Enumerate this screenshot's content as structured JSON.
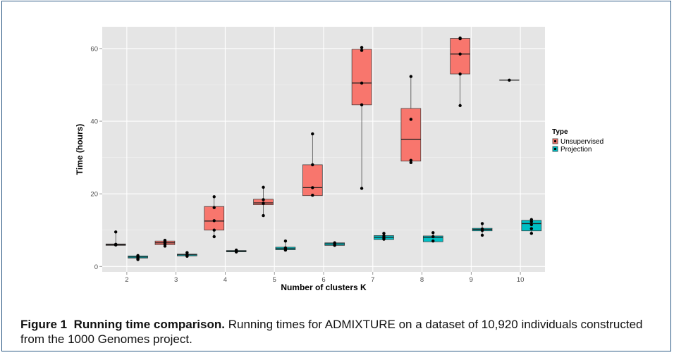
{
  "chart_data": {
    "type": "box",
    "xlabel": "Number of clusters K",
    "ylabel": "Time (hours)",
    "categories": [
      "2",
      "3",
      "4",
      "5",
      "6",
      "7",
      "8",
      "9",
      "10"
    ],
    "ylim": [
      -1.5,
      66
    ],
    "yticks": [
      0,
      20,
      40,
      60
    ],
    "grid": true,
    "legend": {
      "title": "Type",
      "placement": "right"
    },
    "series": [
      {
        "name": "Unsupervised",
        "color": "#f8766d",
        "boxes": [
          {
            "category": "2",
            "q1": 5.8,
            "median": 6.0,
            "q3": 6.2,
            "min": 5.8,
            "max": 9.5,
            "points": [
              9.5,
              6.1,
              6.0,
              5.9
            ]
          },
          {
            "category": "3",
            "q1": 6.0,
            "median": 6.5,
            "q3": 7.0,
            "min": 5.5,
            "max": 7.2,
            "points": [
              7.2,
              6.8,
              6.5,
              6.1,
              5.6
            ]
          },
          {
            "category": "4",
            "q1": 10.0,
            "median": 12.5,
            "q3": 16.5,
            "min": 8.0,
            "max": 19.0,
            "points": [
              19.2,
              16.2,
              12.6,
              10.0,
              8.2
            ]
          },
          {
            "category": "5",
            "q1": 17.0,
            "median": 17.5,
            "q3": 18.5,
            "min": 14.0,
            "max": 21.5,
            "points": [
              21.8,
              18.4,
              17.4,
              14.0
            ]
          },
          {
            "category": "6",
            "q1": 19.5,
            "median": 21.7,
            "q3": 28.0,
            "min": 19.5,
            "max": 36.5,
            "points": [
              36.5,
              28.0,
              21.7,
              19.6
            ]
          },
          {
            "category": "7",
            "q1": 44.5,
            "median": 50.5,
            "q3": 59.8,
            "min": 21.5,
            "max": 60.3,
            "points": [
              60.3,
              59.5,
              50.5,
              44.5,
              21.5
            ]
          },
          {
            "category": "8",
            "q1": 29.0,
            "median": 35.0,
            "q3": 43.5,
            "min": 28.5,
            "max": 52.3,
            "points": [
              52.3,
              40.5,
              29.2,
              28.6
            ]
          },
          {
            "category": "9",
            "q1": 53.0,
            "median": 58.5,
            "q3": 62.8,
            "min": 44.3,
            "max": 63.2,
            "points": [
              62.9,
              62.7,
              58.5,
              53.0,
              44.3
            ]
          },
          {
            "category": "10",
            "q1": 51.3,
            "median": 51.3,
            "q3": 51.3,
            "min": 51.3,
            "max": 51.3,
            "points": [
              51.3
            ]
          }
        ]
      },
      {
        "name": "Projection",
        "color": "#00bfc4",
        "boxes": [
          {
            "category": "2",
            "q1": 2.3,
            "median": 2.6,
            "q3": 2.9,
            "min": 1.8,
            "max": 3.0,
            "points": [
              3.0,
              2.7,
              2.4,
              2.1,
              1.9
            ]
          },
          {
            "category": "3",
            "q1": 2.9,
            "median": 3.2,
            "q3": 3.4,
            "min": 2.7,
            "max": 3.8,
            "points": [
              3.8,
              3.3,
              3.0,
              2.8
            ]
          },
          {
            "category": "4",
            "q1": 4.0,
            "median": 4.2,
            "q3": 4.4,
            "min": 3.9,
            "max": 4.6,
            "points": [
              4.5,
              4.2,
              4.0
            ]
          },
          {
            "category": "5",
            "q1": 4.6,
            "median": 4.9,
            "q3": 5.3,
            "min": 4.4,
            "max": 7.0,
            "points": [
              7.0,
              5.1,
              4.8,
              4.5
            ]
          },
          {
            "category": "6",
            "q1": 5.8,
            "median": 6.2,
            "q3": 6.5,
            "min": 5.6,
            "max": 6.6,
            "points": [
              6.5,
              6.2,
              5.8
            ]
          },
          {
            "category": "7",
            "q1": 7.4,
            "median": 8.0,
            "q3": 8.5,
            "min": 7.3,
            "max": 9.2,
            "points": [
              9.1,
              8.4,
              7.8,
              7.5
            ]
          },
          {
            "category": "8",
            "q1": 6.8,
            "median": 8.0,
            "q3": 8.4,
            "min": 6.7,
            "max": 9.2,
            "points": [
              9.3,
              8.2,
              7.0
            ]
          },
          {
            "category": "9",
            "q1": 9.8,
            "median": 10.2,
            "q3": 10.5,
            "min": 8.5,
            "max": 11.8,
            "points": [
              11.8,
              10.3,
              9.9,
              8.6
            ]
          },
          {
            "category": "10",
            "q1": 9.8,
            "median": 11.8,
            "q3": 12.7,
            "min": 9.0,
            "max": 12.9,
            "points": [
              12.9,
              12.3,
              11.5,
              10.4,
              9.1
            ]
          }
        ]
      }
    ]
  },
  "caption": {
    "label": "Figure 1",
    "title": "Running time comparison.",
    "text": "Running times for ADMIXTURE on a dataset of 10,920 individuals constructed from the 1000 Genomes project."
  }
}
